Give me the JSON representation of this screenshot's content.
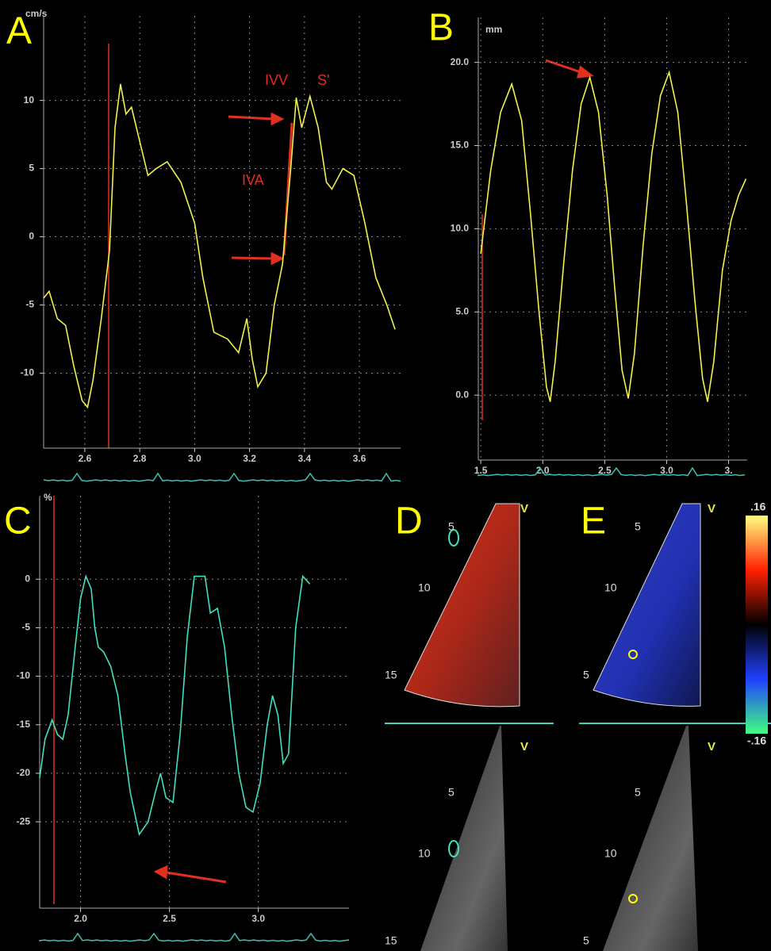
{
  "chart_data": [
    {
      "type": "line",
      "title": "A",
      "ylabel": "cm/s",
      "annotations": [
        "IVV",
        "S'",
        "IVA"
      ],
      "x": [
        2.45,
        2.47,
        2.5,
        2.53,
        2.56,
        2.59,
        2.61,
        2.63,
        2.66,
        2.69,
        2.71,
        2.73,
        2.75,
        2.77,
        2.8,
        2.83,
        2.86,
        2.9,
        2.95,
        3.0,
        3.03,
        3.07,
        3.12,
        3.16,
        3.19,
        3.21,
        3.23,
        3.26,
        3.29,
        3.32,
        3.35,
        3.37,
        3.39,
        3.42,
        3.45,
        3.48,
        3.5,
        3.54,
        3.58,
        3.62,
        3.66,
        3.7,
        3.73
      ],
      "series": [
        {
          "color": "#f0f050",
          "values": [
            -4.5,
            -4.0,
            -6.0,
            -6.5,
            -9.5,
            -12.0,
            -12.5,
            -10.5,
            -6,
            -1,
            8,
            11.2,
            9,
            9.5,
            7,
            4.5,
            5,
            5.5,
            4,
            1,
            -3,
            -7,
            -7.5,
            -8.5,
            -6,
            -9,
            -11,
            -10,
            -5,
            -2,
            5,
            10.2,
            8,
            10.3,
            8,
            4,
            3.5,
            5,
            4.5,
            1,
            -3,
            -5,
            -6.8
          ]
        }
      ],
      "xlim": [
        2.45,
        3.75
      ],
      "ylim": [
        -15.5,
        16.2
      ],
      "xticks": [
        2.6,
        2.8,
        {
          "value": 3,
          "label": "3.0"
        },
        3.2,
        3.4,
        3.6
      ],
      "yticks": [
        10,
        5,
        0,
        -5,
        -10
      ],
      "grid": true
    },
    {
      "type": "line",
      "title": "B",
      "ylabel": "mm",
      "x": [
        1.5,
        1.58,
        1.66,
        1.75,
        1.83,
        1.9,
        1.97,
        2.03,
        2.06,
        2.1,
        2.17,
        2.24,
        2.31,
        2.38,
        2.45,
        2.52,
        2.58,
        2.64,
        2.69,
        2.74,
        2.81,
        2.88,
        2.95,
        3.02,
        3.09,
        3.16,
        3.23,
        3.29,
        3.33,
        3.38,
        3.45,
        3.52,
        3.58,
        3.64
      ],
      "series": [
        {
          "color": "#f0f050",
          "values": [
            8.5,
            13.5,
            17,
            18.7,
            16.5,
            11,
            5,
            0.5,
            -0.4,
            2,
            8,
            13.5,
            17.5,
            19.1,
            17,
            12,
            6.5,
            1.5,
            -0.2,
            2.5,
            9,
            14.5,
            18,
            19.4,
            17,
            11.5,
            5.5,
            1,
            -0.4,
            2,
            7.5,
            10.5,
            12,
            13
          ]
        }
      ],
      "xlim": [
        1.48,
        3.65
      ],
      "ylim": [
        -3.9,
        22.7
      ],
      "xticks": [
        1.5,
        {
          "value": 2,
          "label": "2.0"
        },
        2.5,
        {
          "value": 3,
          "label": "3.0"
        },
        {
          "value": 3.5,
          "label": "3."
        }
      ],
      "yticks": [
        {
          "value": 20,
          "label": "20.0"
        },
        {
          "value": 15,
          "label": "15.0"
        },
        {
          "value": 10,
          "label": "10.0"
        },
        {
          "value": 5,
          "label": "5.0"
        },
        {
          "value": 0,
          "label": "0.0"
        }
      ],
      "grid": true
    },
    {
      "type": "line",
      "title": "C",
      "ylabel": "%",
      "x": [
        1.77,
        1.8,
        1.84,
        1.87,
        1.9,
        1.93,
        1.97,
        2.0,
        2.03,
        2.06,
        2.08,
        2.1,
        2.13,
        2.17,
        2.21,
        2.25,
        2.28,
        2.33,
        2.38,
        2.42,
        2.45,
        2.48,
        2.52,
        2.56,
        2.6,
        2.64,
        2.7,
        2.73,
        2.77,
        2.81,
        2.85,
        2.89,
        2.93,
        2.97,
        3.01,
        3.05,
        3.08,
        3.11,
        3.14,
        3.17,
        3.21,
        3.25,
        3.29
      ],
      "series": [
        {
          "color": "#40e0c0",
          "values": [
            -20.5,
            -16.5,
            -14.5,
            -16,
            -16.5,
            -14,
            -7,
            -2,
            0.3,
            -1,
            -5,
            -7,
            -7.5,
            -9,
            -12,
            -18,
            -22,
            -26.3,
            -25,
            -22,
            -20,
            -22.5,
            -23,
            -16,
            -6,
            0.3,
            0.3,
            -3.5,
            -3,
            -7,
            -14,
            -20,
            -23.5,
            -24,
            -21,
            -15,
            -12,
            -14,
            -19,
            -18,
            -5,
            0.3,
            -0.5
          ]
        }
      ],
      "xlim": [
        1.77,
        3.51
      ],
      "ylim": [
        -33.9,
        8.6
      ],
      "xticks": [
        {
          "value": 2,
          "label": "2.0"
        },
        2.5,
        {
          "value": 3,
          "label": "3.0"
        }
      ],
      "yticks": [
        0,
        -5,
        -10,
        -15,
        -20,
        -25
      ],
      "grid": true
    }
  ],
  "image_panels": [
    {
      "label": "D",
      "marker": "V",
      "depths": [
        "5",
        "10",
        "15"
      ],
      "lower_marker": "V",
      "lower_depths": [
        "5",
        "10",
        "15"
      ]
    },
    {
      "label": "E",
      "marker": "V",
      "depths": [
        "5",
        "10",
        "5"
      ],
      "lower_marker": "V",
      "lower_depths": [
        "5",
        "10",
        "5"
      ]
    }
  ],
  "colorbar": {
    "max": ".16",
    "min": "-.16"
  }
}
